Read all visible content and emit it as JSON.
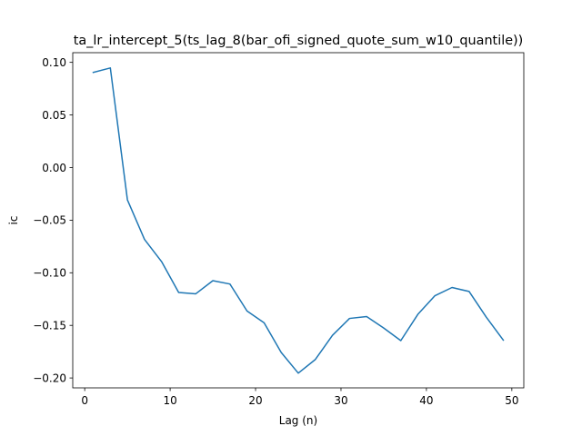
{
  "chart_data": {
    "type": "line",
    "title": "ta_lr_intercept_5(ts_lag_8(bar_ofi_signed_quote_sum_w10_quantile))",
    "xlabel": "Lag (n)",
    "ylabel": "ic",
    "xlim": [
      -1.4,
      51.4
    ],
    "ylim": [
      -0.2094,
      0.1092
    ],
    "x_ticks": [
      0,
      10,
      20,
      30,
      40,
      50
    ],
    "x_tick_labels": [
      "0",
      "10",
      "20",
      "30",
      "40",
      "50"
    ],
    "y_ticks": [
      0.1,
      0.05,
      0.0,
      -0.05,
      -0.1,
      -0.15,
      -0.2
    ],
    "y_tick_labels": [
      "0.10",
      "0.05",
      "0.00",
      "−0.05",
      "−0.10",
      "−0.15",
      "−0.20"
    ],
    "grid": false,
    "series": [
      {
        "color": "#1f77b4",
        "x": [
          1,
          3,
          5,
          7,
          9,
          11,
          13,
          15,
          17,
          19,
          21,
          23,
          25,
          27,
          29,
          31,
          33,
          35,
          37,
          39,
          41,
          43,
          45,
          47,
          49
        ],
        "y": [
          0.0904,
          0.0947,
          -0.0307,
          -0.0683,
          -0.0894,
          -0.1187,
          -0.12,
          -0.1075,
          -0.1107,
          -0.1363,
          -0.1476,
          -0.1757,
          -0.1954,
          -0.1824,
          -0.1595,
          -0.1434,
          -0.1416,
          -0.1525,
          -0.1645,
          -0.1395,
          -0.1218,
          -0.114,
          -0.1178,
          -0.1421,
          -0.164
        ]
      }
    ]
  }
}
